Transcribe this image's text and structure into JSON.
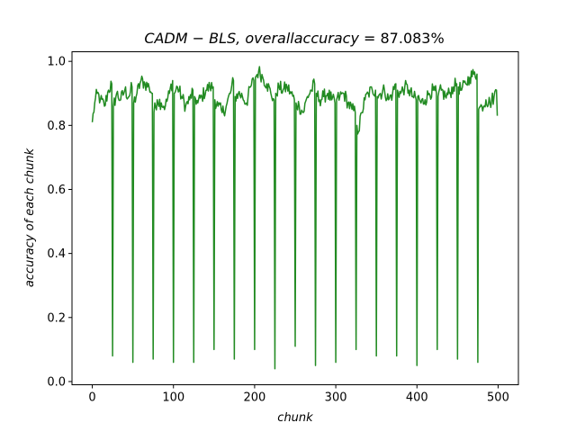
{
  "chart_data": {
    "type": "line",
    "title": "CADM − BLS,  overallaccuracy  =  87.083%",
    "title_parts": {
      "italic": "CADM − BLS,  overallaccuracy  =  ",
      "normal": "87.083%"
    },
    "xlabel": "chunk",
    "ylabel": "accuracy of each chunk",
    "xlim": [
      -25,
      525
    ],
    "ylim": [
      -0.01,
      1.03
    ],
    "x_ticks": [
      0,
      100,
      200,
      300,
      400,
      500
    ],
    "y_ticks": [
      0.0,
      0.2,
      0.4,
      0.6,
      0.8,
      1.0
    ],
    "x_tick_labels": [
      "0",
      "100",
      "200",
      "300",
      "400",
      "500"
    ],
    "y_tick_labels": [
      "0.0",
      "0.2",
      "0.4",
      "0.6",
      "0.8",
      "1.0"
    ],
    "grid": false,
    "series": [
      {
        "color": "#228b22",
        "n_points": 500,
        "x_start": 0,
        "x_step": 1,
        "anchors": [
          [
            0,
            0.81
          ],
          [
            3,
            0.87
          ],
          [
            6,
            0.9
          ],
          [
            10,
            0.88
          ],
          [
            15,
            0.86
          ],
          [
            20,
            0.91
          ],
          [
            24,
            0.93
          ],
          [
            26,
            0.86
          ],
          [
            30,
            0.9
          ],
          [
            35,
            0.88
          ],
          [
            40,
            0.91
          ],
          [
            45,
            0.89
          ],
          [
            49,
            0.92
          ],
          [
            51,
            0.87
          ],
          [
            55,
            0.9
          ],
          [
            60,
            0.94
          ],
          [
            65,
            0.93
          ],
          [
            70,
            0.92
          ],
          [
            74,
            0.9
          ],
          [
            76,
            0.84
          ],
          [
            80,
            0.88
          ],
          [
            85,
            0.87
          ],
          [
            90,
            0.86
          ],
          [
            95,
            0.9
          ],
          [
            99,
            0.94
          ],
          [
            101,
            0.9
          ],
          [
            105,
            0.92
          ],
          [
            110,
            0.89
          ],
          [
            115,
            0.86
          ],
          [
            120,
            0.88
          ],
          [
            124,
            0.91
          ],
          [
            126,
            0.89
          ],
          [
            130,
            0.87
          ],
          [
            135,
            0.89
          ],
          [
            140,
            0.91
          ],
          [
            145,
            0.92
          ],
          [
            149,
            0.92
          ],
          [
            151,
            0.88
          ],
          [
            155,
            0.86
          ],
          [
            160,
            0.84
          ],
          [
            165,
            0.86
          ],
          [
            170,
            0.9
          ],
          [
            174,
            0.94
          ],
          [
            176,
            0.89
          ],
          [
            180,
            0.9
          ],
          [
            185,
            0.89
          ],
          [
            190,
            0.87
          ],
          [
            195,
            0.92
          ],
          [
            199,
            0.94
          ],
          [
            201,
            0.95
          ],
          [
            205,
            0.97
          ],
          [
            210,
            0.95
          ],
          [
            215,
            0.93
          ],
          [
            220,
            0.9
          ],
          [
            224,
            0.88
          ],
          [
            226,
            0.9
          ],
          [
            230,
            0.92
          ],
          [
            235,
            0.91
          ],
          [
            240,
            0.92
          ],
          [
            245,
            0.9
          ],
          [
            249,
            0.88
          ],
          [
            251,
            0.87
          ],
          [
            255,
            0.86
          ],
          [
            260,
            0.84
          ],
          [
            265,
            0.89
          ],
          [
            270,
            0.91
          ],
          [
            274,
            0.93
          ],
          [
            276,
            0.9
          ],
          [
            280,
            0.88
          ],
          [
            285,
            0.89
          ],
          [
            290,
            0.9
          ],
          [
            295,
            0.88
          ],
          [
            299,
            0.87
          ],
          [
            301,
            0.88
          ],
          [
            305,
            0.89
          ],
          [
            310,
            0.9
          ],
          [
            315,
            0.87
          ],
          [
            320,
            0.85
          ],
          [
            324,
            0.84
          ],
          [
            326,
            0.8
          ],
          [
            328,
            0.78
          ],
          [
            332,
            0.84
          ],
          [
            336,
            0.88
          ],
          [
            340,
            0.9
          ],
          [
            345,
            0.91
          ],
          [
            349,
            0.91
          ],
          [
            351,
            0.89
          ],
          [
            355,
            0.9
          ],
          [
            360,
            0.91
          ],
          [
            365,
            0.88
          ],
          [
            370,
            0.9
          ],
          [
            374,
            0.93
          ],
          [
            376,
            0.91
          ],
          [
            380,
            0.9
          ],
          [
            385,
            0.92
          ],
          [
            390,
            0.91
          ],
          [
            395,
            0.89
          ],
          [
            399,
            0.88
          ],
          [
            401,
            0.89
          ],
          [
            405,
            0.87
          ],
          [
            410,
            0.88
          ],
          [
            415,
            0.9
          ],
          [
            420,
            0.91
          ],
          [
            424,
            0.9
          ],
          [
            426,
            0.89
          ],
          [
            430,
            0.91
          ],
          [
            435,
            0.89
          ],
          [
            440,
            0.9
          ],
          [
            445,
            0.92
          ],
          [
            449,
            0.93
          ],
          [
            451,
            0.92
          ],
          [
            455,
            0.91
          ],
          [
            460,
            0.93
          ],
          [
            465,
            0.95
          ],
          [
            470,
            0.96
          ],
          [
            474,
            0.96
          ],
          [
            476,
            0.85
          ],
          [
            480,
            0.86
          ],
          [
            485,
            0.88
          ],
          [
            490,
            0.87
          ],
          [
            495,
            0.89
          ],
          [
            498,
            0.91
          ],
          [
            499,
            0.83
          ]
        ],
        "dips": [
          [
            25,
            0.08
          ],
          [
            50,
            0.06
          ],
          [
            75,
            0.07
          ],
          [
            100,
            0.06
          ],
          [
            125,
            0.06
          ],
          [
            150,
            0.1
          ],
          [
            175,
            0.07
          ],
          [
            200,
            0.1
          ],
          [
            225,
            0.04
          ],
          [
            250,
            0.11
          ],
          [
            275,
            0.05
          ],
          [
            300,
            0.06
          ],
          [
            325,
            0.1
          ],
          [
            350,
            0.08
          ],
          [
            375,
            0.08
          ],
          [
            400,
            0.05
          ],
          [
            425,
            0.1
          ],
          [
            450,
            0.07
          ],
          [
            475,
            0.06
          ]
        ]
      }
    ]
  }
}
